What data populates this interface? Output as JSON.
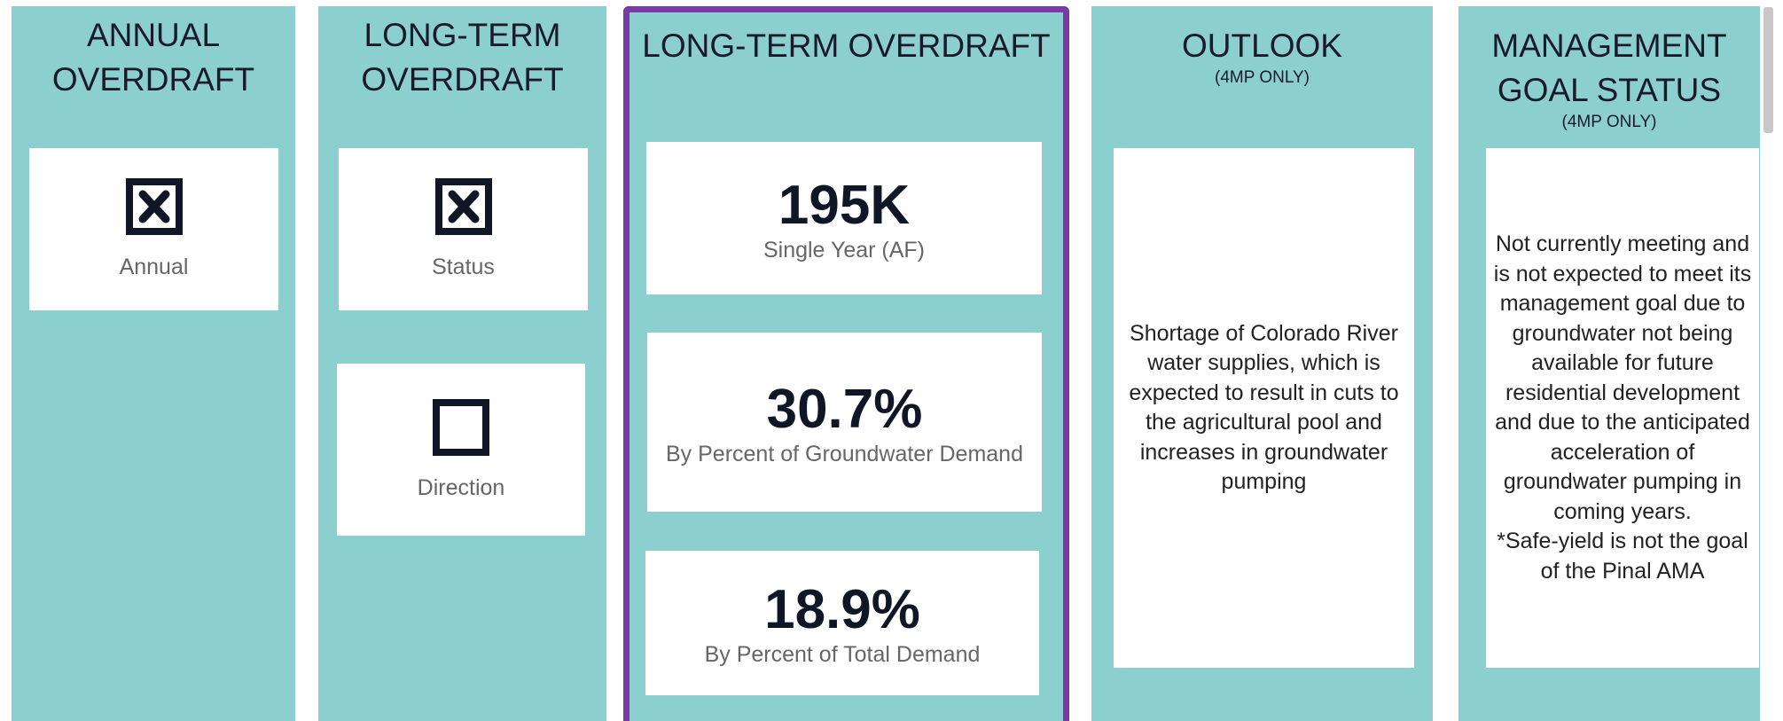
{
  "panels": [
    {
      "title": [
        "ANNUAL",
        "OVERDRAFT"
      ],
      "cards": [
        {
          "icon": "x",
          "label": "Annual"
        }
      ]
    },
    {
      "title": [
        "LONG-TERM",
        "OVERDRAFT"
      ],
      "cards": [
        {
          "icon": "x",
          "label": "Status"
        },
        {
          "icon": "box",
          "label": "Direction"
        }
      ]
    },
    {
      "title": [
        "LONG-TERM OVERDRAFT"
      ],
      "cards": [
        {
          "value": "195K",
          "label": "Single Year (AF)"
        },
        {
          "value": "30.7%",
          "label": "By Percent of Groundwater Demand"
        },
        {
          "value": "18.9%",
          "label": "By Percent of Total Demand"
        }
      ]
    },
    {
      "title": [
        "OUTLOOK"
      ],
      "subtitle": "(4MP ONLY)",
      "text": [
        "Shortage of Colorado River water supplies, which is expected to result in cuts to the agricultural pool and increases in groundwater pumping"
      ]
    },
    {
      "title": [
        "MANAGEMENT",
        "GOAL STATUS"
      ],
      "subtitle": "(4MP ONLY)",
      "text": [
        "Not currently meeting and is not expected to meet its management goal due to groundwater not being available for future residential development and due to the anticipated acceleration of groundwater pumping in coming years.",
        "*Safe-yield is not the goal of the Pinal AMA"
      ]
    }
  ]
}
